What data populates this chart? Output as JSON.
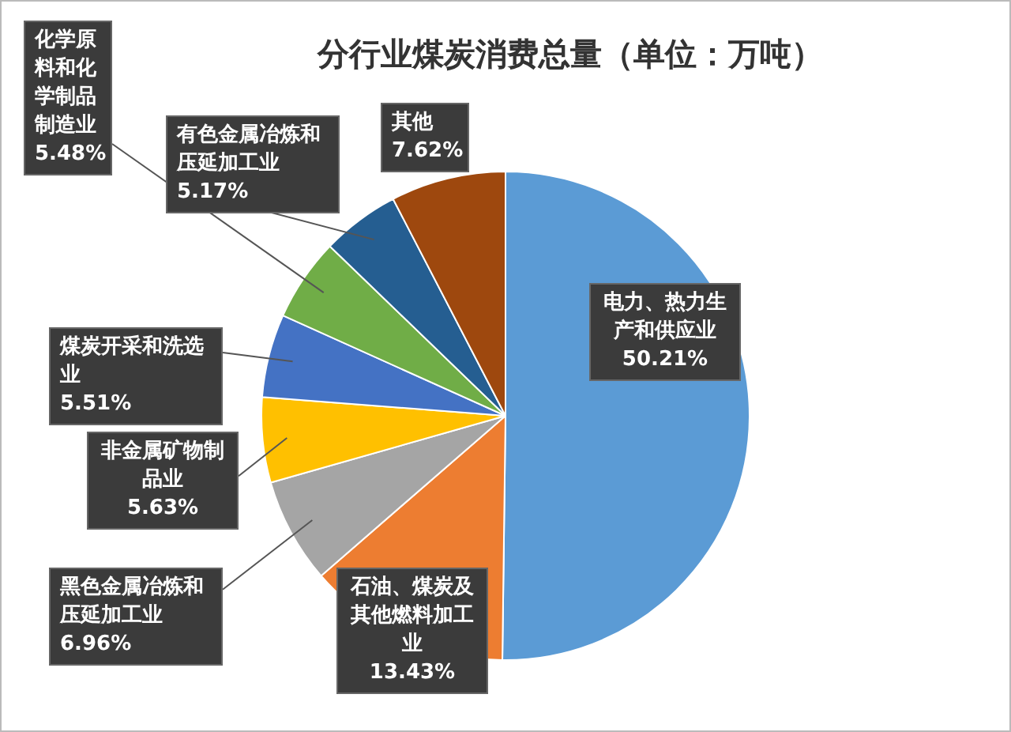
{
  "chart_data": {
    "type": "pie",
    "title": "分行业煤炭消费总量（单位：万吨）",
    "categories": [
      "电力、热力生产和供应业",
      "石油、煤炭及其他燃料加工业",
      "黑色金属冶炼和压延加工业",
      "非金属矿物制品业",
      "煤炭开采和洗选业",
      "化学原料和化学制品制造业",
      "有色金属冶炼和压延加工业",
      "其他"
    ],
    "values": [
      50.21,
      13.43,
      6.96,
      5.63,
      5.51,
      5.48,
      5.17,
      7.62
    ],
    "value_labels": [
      "50.21%",
      "13.43%",
      "6.96%",
      "5.63%",
      "5.51%",
      "5.48%",
      "5.17%",
      "7.62%"
    ],
    "colors": [
      "#5b9bd5",
      "#ed7d31",
      "#a5a5a5",
      "#ffc000",
      "#4472c4",
      "#70ad47",
      "#255e91",
      "#9e480e"
    ],
    "legend": false
  }
}
